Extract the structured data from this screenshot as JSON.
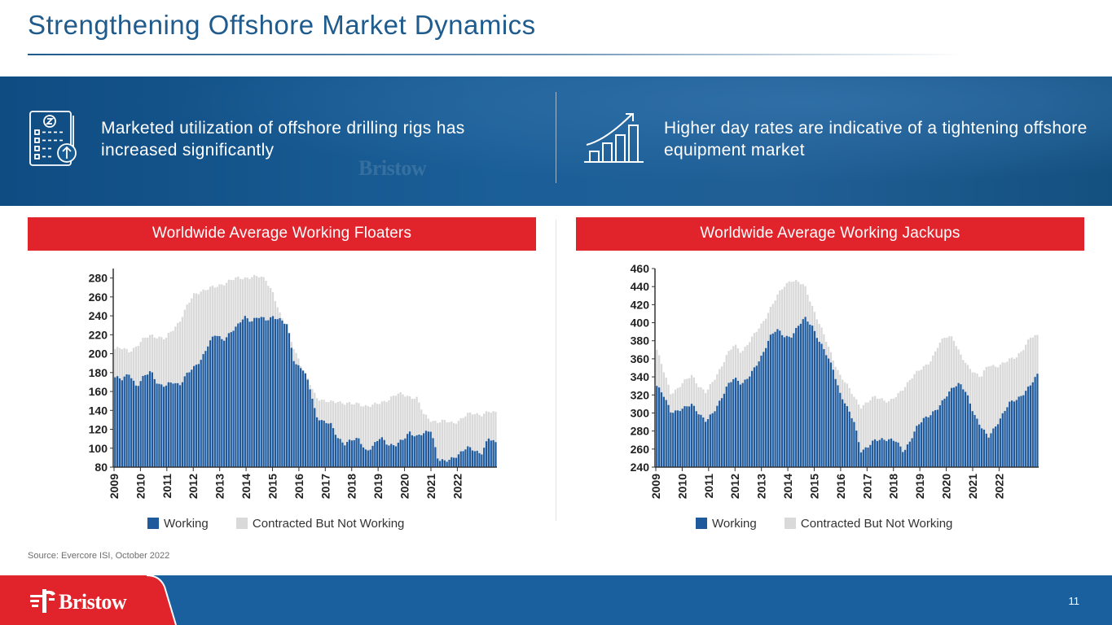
{
  "page": {
    "title": "Strengthening Offshore Market Dynamics",
    "source": "Source: Evercore ISI, October 2022",
    "page_number": "11",
    "logo_text": "Bristow",
    "colors": {
      "title": "#1f5b8c",
      "header_red": "#e1242c",
      "working": "#1f5a9c",
      "contracted": "#d9d9d9",
      "footer": "#1a5f9e"
    }
  },
  "banner": {
    "left_text": "Marketed utilization of offshore drilling rigs has increased significantly",
    "right_text": "Higher day rates are indicative of a tightening offshore equipment market",
    "left_icon": "clipboard-chart-icon",
    "right_icon": "growth-bar-chart-icon",
    "watermark": "Bristow"
  },
  "charts": [
    {
      "header": "Worldwide Average Working Floaters",
      "legend": {
        "working": "Working",
        "contracted": "Contracted But Not Working"
      }
    },
    {
      "header": "Worldwide Average Working Jackups",
      "legend": {
        "working": "Working",
        "contracted": "Contracted But Not Working"
      }
    }
  ],
  "chart_data": [
    {
      "type": "bar",
      "stacked": true,
      "title": "Worldwide Average Working Floaters",
      "x_labels": [
        "2009",
        "2010",
        "2011",
        "2012",
        "2013",
        "2014",
        "2015",
        "2016",
        "2017",
        "2018",
        "2019",
        "2020",
        "2021",
        "2022"
      ],
      "ylim": [
        80,
        290
      ],
      "yticks": [
        80,
        100,
        120,
        140,
        160,
        180,
        200,
        220,
        240,
        260,
        280
      ],
      "series": [
        {
          "name": "Working",
          "keypoints": [
            175,
            172,
            180,
            165,
            175,
            182,
            168,
            165,
            170,
            168,
            178,
            185,
            195,
            210,
            220,
            215,
            222,
            228,
            240,
            235,
            238,
            236,
            240,
            235,
            230,
            190,
            185,
            168,
            135,
            128,
            125,
            112,
            105,
            108,
            110,
            97,
            102,
            112,
            105,
            102,
            108,
            118,
            112,
            115,
            120,
            88,
            85,
            90,
            95,
            100,
            98,
            95,
            110,
            105
          ]
        },
        {
          "name": "Total (Working + Contracted But Not Working)",
          "keypoints": [
            205,
            205,
            203,
            208,
            215,
            220,
            218,
            215,
            225,
            235,
            250,
            262,
            267,
            269,
            270,
            274,
            278,
            279,
            280,
            282,
            281,
            278,
            265,
            240,
            225,
            205,
            185,
            170,
            155,
            150,
            148,
            150,
            148,
            146,
            147,
            145,
            145,
            148,
            152,
            156,
            157,
            155,
            153,
            135,
            130,
            128,
            128,
            127,
            130,
            135,
            137,
            136,
            138,
            137
          ]
        }
      ]
    },
    {
      "type": "bar",
      "stacked": true,
      "title": "Worldwide Average Working Jackups",
      "x_labels": [
        "2009",
        "2010",
        "2011",
        "2012",
        "2013",
        "2014",
        "2015",
        "2016",
        "2017",
        "2018",
        "2019",
        "2020",
        "2021",
        "2022"
      ],
      "ylim": [
        240,
        460
      ],
      "yticks": [
        240,
        260,
        280,
        300,
        320,
        340,
        360,
        380,
        400,
        420,
        440,
        460
      ],
      "series": [
        {
          "name": "Working",
          "keypoints": [
            330,
            318,
            302,
            303,
            305,
            310,
            300,
            290,
            300,
            315,
            330,
            338,
            333,
            340,
            350,
            365,
            385,
            392,
            385,
            385,
            395,
            405,
            398,
            380,
            365,
            350,
            322,
            305,
            290,
            258,
            262,
            270,
            272,
            270,
            268,
            258,
            270,
            285,
            295,
            300,
            305,
            318,
            330,
            332,
            320,
            300,
            285,
            272,
            285,
            298,
            310,
            315,
            322,
            330,
            342
          ]
        },
        {
          "name": "Total (Working + Contracted But Not Working)",
          "keypoints": [
            370,
            345,
            322,
            328,
            335,
            342,
            330,
            322,
            335,
            350,
            365,
            375,
            368,
            378,
            388,
            400,
            415,
            428,
            440,
            448,
            445,
            440,
            420,
            400,
            380,
            360,
            342,
            330,
            318,
            307,
            312,
            318,
            316,
            312,
            318,
            328,
            338,
            345,
            352,
            360,
            375,
            385,
            385,
            365,
            352,
            346,
            340,
            352,
            352,
            355,
            358,
            362,
            372,
            383,
            385
          ]
        }
      ]
    }
  ]
}
